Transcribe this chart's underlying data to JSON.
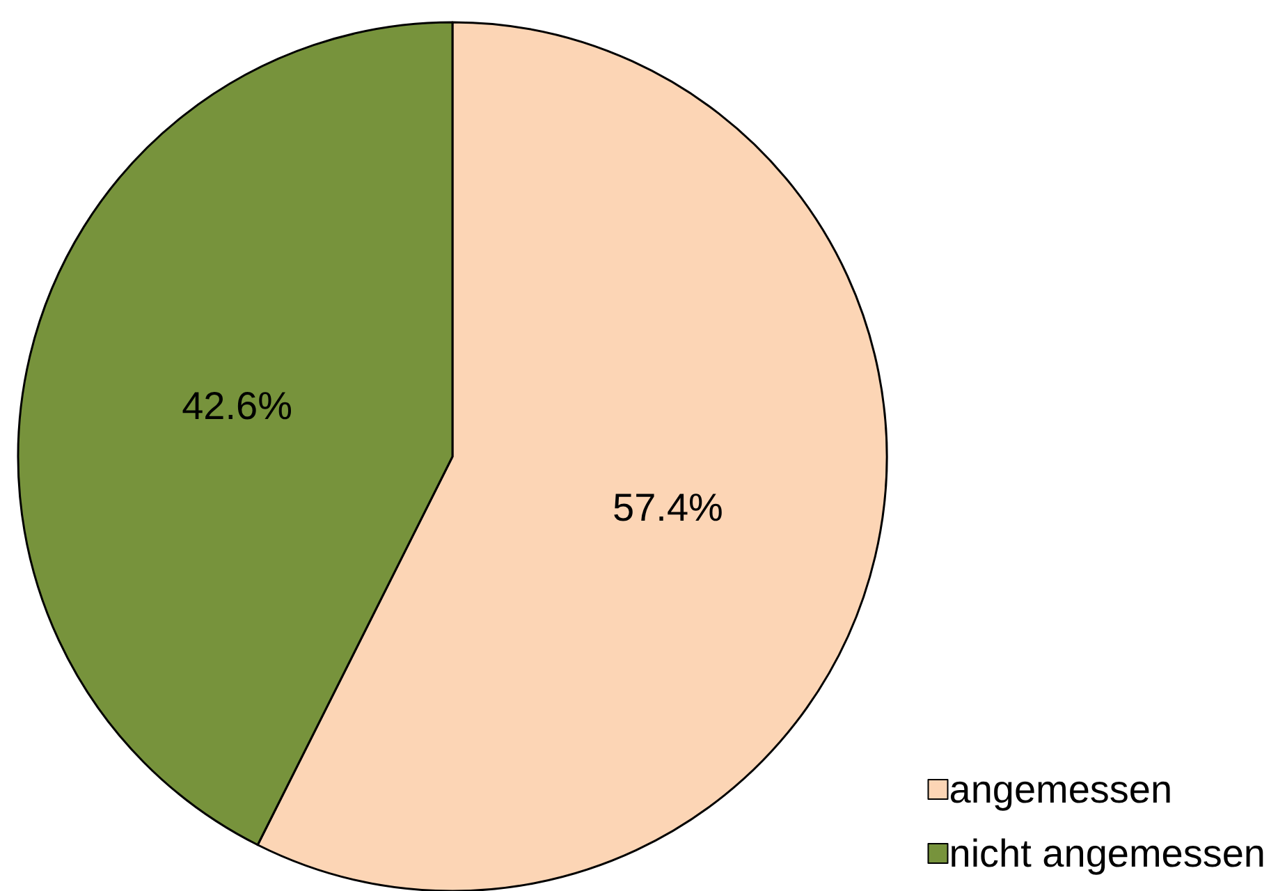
{
  "chart_data": {
    "type": "pie",
    "categories": [
      "angemessen",
      "nicht angemessen"
    ],
    "values": [
      57.4,
      42.6
    ],
    "colors": [
      "#fcd5b5",
      "#77933c"
    ],
    "value_labels": [
      "57.4%",
      "42.6%"
    ],
    "legend": "bottom right"
  }
}
